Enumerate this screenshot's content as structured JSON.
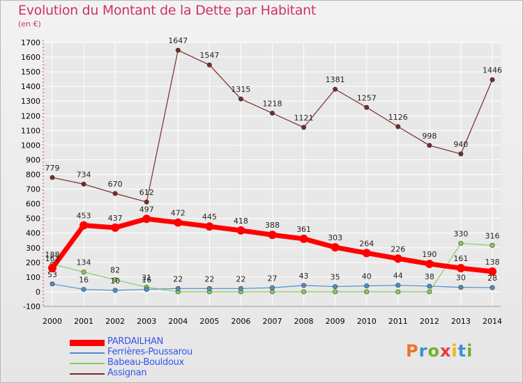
{
  "header": {
    "title": "Evolution du Montant de la Dette par Habitant",
    "subtitle": "(en €)"
  },
  "logo": {
    "text": "Proxiti",
    "colors": [
      "#e8762b",
      "#3b8fd9",
      "#6bb330",
      "#e83a3a",
      "#f2b705",
      "#3b8fd9",
      "#6bb330"
    ]
  },
  "chart_data": {
    "type": "line",
    "x": [
      "2000",
      "2001",
      "2002",
      "2003",
      "2004",
      "2005",
      "2006",
      "2007",
      "2008",
      "2009",
      "2010",
      "2011",
      "2012",
      "2013",
      "2014"
    ],
    "ylim": [
      -100,
      1700
    ],
    "yticks": [
      -100,
      0,
      100,
      200,
      300,
      400,
      500,
      600,
      700,
      800,
      900,
      1000,
      1100,
      1200,
      1300,
      1400,
      1500,
      1600,
      1700
    ],
    "grid": true,
    "legend_placement": "bottom-left",
    "series": [
      {
        "name": "Assignan",
        "color": "#7a2a2a",
        "width": 1.2,
        "values": [
          779,
          734,
          670,
          612,
          1647,
          1547,
          1315,
          1218,
          1121,
          1381,
          1257,
          1126,
          998,
          940,
          1446
        ],
        "labels": [
          "779",
          "734",
          "670",
          "612",
          "1647",
          "1547",
          "1315",
          "1218",
          "1121",
          "1381",
          "1257",
          "1126",
          "998",
          "940",
          "1446"
        ]
      },
      {
        "name": "Babeau-Bouldoux",
        "color": "#88cc55",
        "width": 1.2,
        "values": [
          188,
          134,
          82,
          31,
          0,
          0,
          0,
          0,
          0,
          0,
          0,
          0,
          0,
          330,
          316
        ],
        "labels": [
          "188",
          "134",
          "82",
          "31",
          "",
          "",
          "",
          "",
          "",
          "",
          "",
          "",
          "",
          "330",
          "316"
        ]
      },
      {
        "name": "Ferrières-Poussarou",
        "color": "#4d8fc9",
        "width": 1.2,
        "values": [
          53,
          16,
          10,
          16,
          22,
          22,
          22,
          27,
          43,
          35,
          40,
          44,
          38,
          30,
          28
        ],
        "labels": [
          "53",
          "16",
          "10",
          "16",
          "22",
          "22",
          "22",
          "27",
          "43",
          "35",
          "40",
          "44",
          "38",
          "30",
          "28"
        ]
      },
      {
        "name": "PARDAILHAN",
        "color": "#ff0000",
        "width": 7,
        "values": [
          162,
          453,
          437,
          497,
          472,
          445,
          418,
          388,
          361,
          303,
          264,
          226,
          190,
          161,
          138
        ],
        "labels": [
          "162",
          "453",
          "437",
          "497",
          "472",
          "445",
          "418",
          "388",
          "361",
          "303",
          "264",
          "226",
          "190",
          "161",
          "138"
        ]
      }
    ],
    "legend": [
      "PARDAILHAN",
      "Ferrières-Poussarou",
      "Babeau-Bouldoux",
      "Assignan"
    ]
  }
}
